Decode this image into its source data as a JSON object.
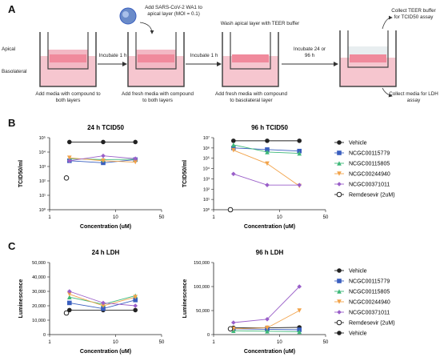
{
  "panels": {
    "a": "A",
    "b": "B",
    "c": "C"
  },
  "workflow": {
    "apical": "Apical",
    "basolateral": "Basolateral",
    "virus_add": "Add SARS-CoV-2 WA1 to apical layer (MOI = 0.1)",
    "incubate1": "Incubate 1 h",
    "incubate2": "Incubate 1 h",
    "wash": "Wash apical layer with TEER buffer",
    "incubate3": "Incubate 24 or 96 h",
    "collect_teer": "Collect TEER buffer for TCID50 assay",
    "collect_ldh": "Collect media for LDH assay",
    "step1": "Add media with compound to both layers",
    "step2": "Add fresh media with compound to both layers",
    "step3": "Add fresh media with compound to basolateral layer"
  },
  "colors": {
    "black": "#222222",
    "blue": "#3a5fbf",
    "green": "#3db878",
    "orange": "#f2a34a",
    "purple": "#9a5fc9"
  },
  "legend_b": [
    "Vehicle",
    "NCGC00115779",
    "NCGC00115805",
    "NCGC00244940",
    "NCGC00371011",
    "Remdesevir (2uM)"
  ],
  "legend_c": [
    "Vehicle",
    "NCGC00115779",
    "NCGC00115805",
    "NCGC00244940",
    "NCGC00371011",
    "Remdesevir (2uM)",
    "Vehicle"
  ],
  "chart_data": [
    {
      "type": "line",
      "title": "24 h TCID50",
      "xlabel": "Concentration (uM)",
      "ylabel": "TCID50/ml",
      "x_log": true,
      "y_log": true,
      "xlim": [
        1,
        50
      ],
      "ylim": [
        1,
        100000
      ],
      "xticks": [
        "1",
        "10",
        "50"
      ],
      "yticks": [
        "10⁰",
        "10¹",
        "10²",
        "10³",
        "10⁴",
        "10⁵"
      ],
      "x": [
        2,
        6.5,
        20
      ],
      "series": [
        {
          "name": "Vehicle",
          "color": "#222222",
          "marker": "circle",
          "values": [
            50000,
            50000,
            50000
          ]
        },
        {
          "name": "NCGC00115779",
          "color": "#3a5fbf",
          "marker": "square",
          "values": [
            2500,
            1800,
            3000
          ]
        },
        {
          "name": "NCGC00115805",
          "color": "#3db878",
          "marker": "triangle",
          "values": [
            3500,
            3000,
            3200
          ]
        },
        {
          "name": "NCGC00244940",
          "color": "#f2a34a",
          "marker": "triangle-down",
          "values": [
            4000,
            2500,
            2000
          ]
        },
        {
          "name": "NCGC00371011",
          "color": "#9a5fc9",
          "marker": "diamond",
          "values": [
            2500,
            5500,
            3500
          ]
        },
        {
          "name": "Remdesevir (2uM)",
          "color": "#222222",
          "marker": "open-circle",
          "x": [
            1.8
          ],
          "values": [
            160
          ]
        }
      ]
    },
    {
      "type": "line",
      "title": "96 h TCID50",
      "xlabel": "Concentration (uM)",
      "ylabel": "TCID50/ml",
      "x_log": true,
      "y_log": true,
      "xlim": [
        1,
        50
      ],
      "ylim": [
        1,
        10000000
      ],
      "xticks": [
        "1",
        "10",
        "50"
      ],
      "yticks": [
        "10⁰",
        "10¹",
        "10²",
        "10³",
        "10⁴",
        "10⁵",
        "10⁶",
        "10⁷"
      ],
      "x": [
        2,
        6.5,
        20
      ],
      "series": [
        {
          "name": "Vehicle",
          "color": "#222222",
          "marker": "circle",
          "values": [
            5000000,
            5000000,
            5000000
          ]
        },
        {
          "name": "NCGC00115779",
          "color": "#3a5fbf",
          "marker": "square",
          "values": [
            1000000,
            700000,
            500000
          ]
        },
        {
          "name": "NCGC00115805",
          "color": "#3db878",
          "marker": "triangle",
          "values": [
            2000000,
            400000,
            300000
          ]
        },
        {
          "name": "NCGC00244940",
          "color": "#f2a34a",
          "marker": "triangle-down",
          "values": [
            600000,
            30000,
            200
          ]
        },
        {
          "name": "NCGC00371011",
          "color": "#9a5fc9",
          "marker": "diamond",
          "values": [
            3000,
            250,
            250
          ]
        },
        {
          "name": "Remdesevir (2uM)",
          "color": "#222222",
          "marker": "open-circle",
          "x": [
            1.8
          ],
          "values": [
            1
          ]
        }
      ]
    },
    {
      "type": "line",
      "title": "24 h LDH",
      "xlabel": "Concentration (uM)",
      "ylabel": "Luminescence",
      "x_log": true,
      "xlim": [
        1,
        50
      ],
      "ylim": [
        0,
        50000
      ],
      "xticks": [
        "1",
        "10",
        "50"
      ],
      "yticks": [
        "0",
        "10,000",
        "20,000",
        "30,000",
        "40,000",
        "50,000"
      ],
      "x": [
        2,
        6.5,
        20
      ],
      "series": [
        {
          "name": "Vehicle",
          "color": "#222222",
          "marker": "circle",
          "values": [
            17000,
            17000,
            17000
          ]
        },
        {
          "name": "NCGC00115779",
          "color": "#3a5fbf",
          "marker": "square",
          "values": [
            22000,
            18000,
            24000
          ]
        },
        {
          "name": "NCGC00115805",
          "color": "#3db878",
          "marker": "triangle",
          "values": [
            26000,
            21000,
            27000
          ]
        },
        {
          "name": "NCGC00244940",
          "color": "#f2a34a",
          "marker": "triangle-down",
          "values": [
            28000,
            20000,
            26000
          ]
        },
        {
          "name": "NCGC00371011",
          "color": "#9a5fc9",
          "marker": "diamond",
          "values": [
            30000,
            22000,
            20000
          ]
        },
        {
          "name": "Remdesevir (2uM)",
          "color": "#222222",
          "marker": "open-circle",
          "x": [
            1.8
          ],
          "values": [
            15000
          ]
        }
      ]
    },
    {
      "type": "line",
      "title": "96 h LDH",
      "xlabel": "Concentration (uM)",
      "ylabel": "Luminescence",
      "x_log": true,
      "xlim": [
        1,
        50
      ],
      "ylim": [
        0,
        150000
      ],
      "xticks": [
        "1",
        "10",
        "50"
      ],
      "yticks": [
        "0",
        "50,000",
        "100,000",
        "150,000"
      ],
      "x": [
        2,
        6.5,
        20
      ],
      "series": [
        {
          "name": "Vehicle",
          "color": "#222222",
          "marker": "circle",
          "values": [
            14000,
            14000,
            15000
          ]
        },
        {
          "name": "NCGC00115779",
          "color": "#3a5fbf",
          "marker": "square",
          "values": [
            12000,
            11000,
            10000
          ]
        },
        {
          "name": "NCGC00115805",
          "color": "#3db878",
          "marker": "triangle",
          "values": [
            8000,
            7000,
            6000
          ]
        },
        {
          "name": "NCGC00244940",
          "color": "#f2a34a",
          "marker": "triangle-down",
          "values": [
            12000,
            14000,
            50000
          ]
        },
        {
          "name": "NCGC00371011",
          "color": "#9a5fc9",
          "marker": "diamond",
          "values": [
            25000,
            32000,
            100000
          ]
        },
        {
          "name": "Remdesevir (2uM)",
          "color": "#222222",
          "marker": "open-circle",
          "x": [
            1.8
          ],
          "values": [
            12000
          ]
        }
      ]
    }
  ]
}
